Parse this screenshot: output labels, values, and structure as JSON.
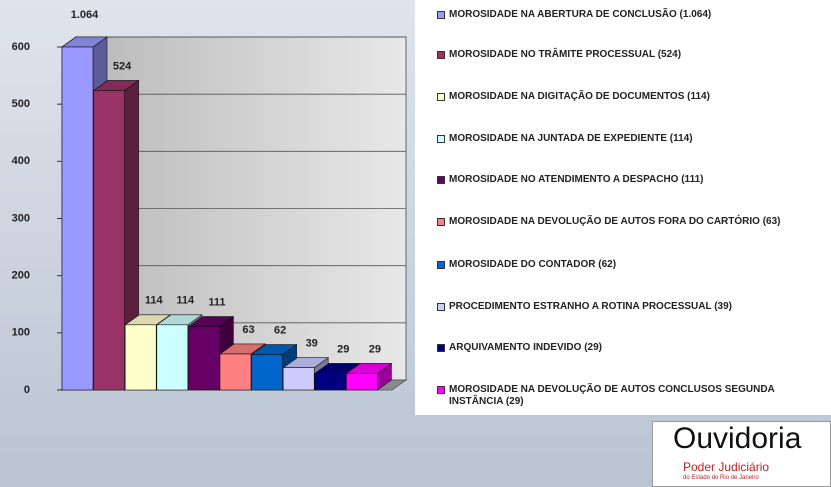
{
  "chart_data": {
    "type": "bar",
    "categories": [
      "MOROSIDADE NA ABERTURA DE CONCLUSÃO (1.064)",
      "MOROSIDADE NO TRÂMITE PROCESSUAL (524)",
      "MOROSIDADE NA DIGITAÇÃO DE DOCUMENTOS (114)",
      "MOROSIDADE NA JUNTADA DE EXPEDIENTE (114)",
      "MOROSIDADE NO ATENDIMENTO A DESPACHO (111)",
      "MOROSIDADE NA DEVOLUÇÃO DE AUTOS FORA DO CARTÓRIO (63)",
      "MOROSIDADE DO CONTADOR (62)",
      "PROCEDIMENTO ESTRANHO A ROTINA PROCESSUAL (39)",
      "ARQUIVAMENTO INDEVIDO (29)",
      "MOROSIDADE NA DEVOLUÇÃO DE AUTOS CONCLUSOS SEGUNDA INSTÂNCIA (29)"
    ],
    "values": [
      1064,
      524,
      114,
      114,
      111,
      63,
      62,
      39,
      29,
      29
    ],
    "value_labels": [
      "1.064",
      "524",
      "114",
      "114",
      "111",
      "63",
      "62",
      "39",
      "29",
      "29"
    ],
    "colors": [
      "#9999ff",
      "#993366",
      "#ffffcc",
      "#ccffff",
      "#660066",
      "#ff8080",
      "#0066cc",
      "#ccccff",
      "#000080",
      "#ff00ff"
    ],
    "ylim": [
      0,
      600
    ],
    "yticks": [
      0,
      100,
      200,
      300,
      400,
      500,
      600
    ],
    "grid": true
  },
  "logo": {
    "name": "Ouvidoria",
    "org": "Poder Judiciário",
    "state": "do Estado do Rio de Janeiro"
  }
}
